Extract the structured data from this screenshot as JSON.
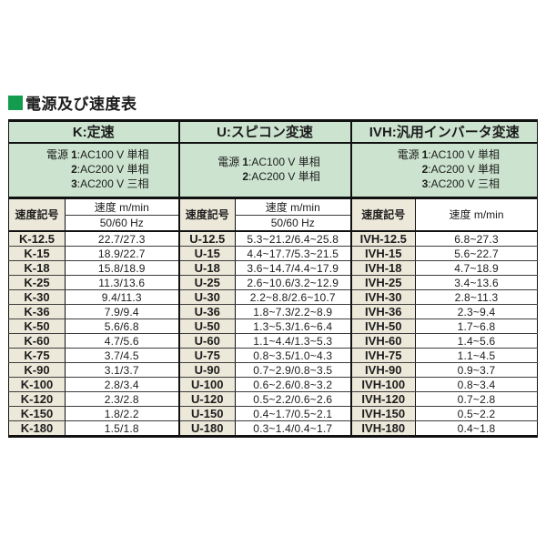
{
  "title": {
    "text": "電源及び速度表",
    "bullet_color": "#149c4e"
  },
  "column_headers": {
    "code": "速度記号",
    "speed": "速度 m/min",
    "freq": "50/60 Hz"
  },
  "colors": {
    "header_green": "#cce4cf",
    "label_beige": "#ede9da",
    "border_dark": "#111111",
    "title_bullet_green": "#149c4e"
  },
  "sections": [
    {
      "header": "K:定速",
      "power_lines": [
        [
          "電源",
          "1",
          ":AC100 V 単相"
        ],
        [
          "",
          "2",
          ":AC200 V 単相"
        ],
        [
          "",
          "3",
          ":AC200 V 三相"
        ]
      ],
      "has_freq_row": true,
      "rows": [
        [
          "K-12.5",
          "22.7/27.3"
        ],
        [
          "K-15",
          "18.9/22.7"
        ],
        [
          "K-18",
          "15.8/18.9"
        ],
        [
          "K-25",
          "11.3/13.6"
        ],
        [
          "K-30",
          "9.4/11.3"
        ],
        [
          "K-36",
          "7.9/9.4"
        ],
        [
          "K-50",
          "5.6/6.8"
        ],
        [
          "K-60",
          "4.7/5.6"
        ],
        [
          "K-75",
          "3.7/4.5"
        ],
        [
          "K-90",
          "3.1/3.7"
        ],
        [
          "K-100",
          "2.8/3.4"
        ],
        [
          "K-120",
          "2.3/2.8"
        ],
        [
          "K-150",
          "1.8/2.2"
        ],
        [
          "K-180",
          "1.5/1.8"
        ]
      ]
    },
    {
      "header": "U:スピコン変速",
      "power_lines": [
        [
          "電源",
          "1",
          ":AC100 V 単相"
        ],
        [
          "",
          "2",
          ":AC200 V 単相"
        ]
      ],
      "has_freq_row": true,
      "rows": [
        [
          "U-12.5",
          "5.3~21.2/6.4~25.8"
        ],
        [
          "U-15",
          "4.4~17.7/5.3~21.5"
        ],
        [
          "U-18",
          "3.6~14.7/4.4~17.9"
        ],
        [
          "U-25",
          "2.6~10.6/3.2~12.9"
        ],
        [
          "U-30",
          "2.2~8.8/2.6~10.7"
        ],
        [
          "U-36",
          "1.8~7.3/2.2~8.9"
        ],
        [
          "U-50",
          "1.3~5.3/1.6~6.4"
        ],
        [
          "U-60",
          "1.1~4.4/1.3~5.3"
        ],
        [
          "U-75",
          "0.8~3.5/1.0~4.3"
        ],
        [
          "U-90",
          "0.7~2.9/0.8~3.5"
        ],
        [
          "U-100",
          "0.6~2.6/0.8~3.2"
        ],
        [
          "U-120",
          "0.5~2.2/0.6~2.6"
        ],
        [
          "U-150",
          "0.4~1.7/0.5~2.1"
        ],
        [
          "U-180",
          "0.3~1.4/0.4~1.7"
        ]
      ]
    },
    {
      "header": "IVH:汎用インバータ変速",
      "power_lines": [
        [
          "電源",
          "1",
          ":AC100 V 単相"
        ],
        [
          "",
          "2",
          ":AC200 V 単相"
        ],
        [
          "",
          "3",
          ":AC200 V 三相"
        ]
      ],
      "has_freq_row": false,
      "rows": [
        [
          "IVH-12.5",
          "6.8~27.3"
        ],
        [
          "IVH-15",
          "5.6~22.7"
        ],
        [
          "IVH-18",
          "4.7~18.9"
        ],
        [
          "IVH-25",
          "3.4~13.6"
        ],
        [
          "IVH-30",
          "2.8~11.3"
        ],
        [
          "IVH-36",
          "2.3~9.4"
        ],
        [
          "IVH-50",
          "1.7~6.8"
        ],
        [
          "IVH-60",
          "1.4~5.6"
        ],
        [
          "IVH-75",
          "1.1~4.5"
        ],
        [
          "IVH-90",
          "0.9~3.7"
        ],
        [
          "IVH-100",
          "0.8~3.4"
        ],
        [
          "IVH-120",
          "0.7~2.8"
        ],
        [
          "IVH-150",
          "0.5~2.2"
        ],
        [
          "IVH-180",
          "0.4~1.8"
        ]
      ]
    }
  ]
}
